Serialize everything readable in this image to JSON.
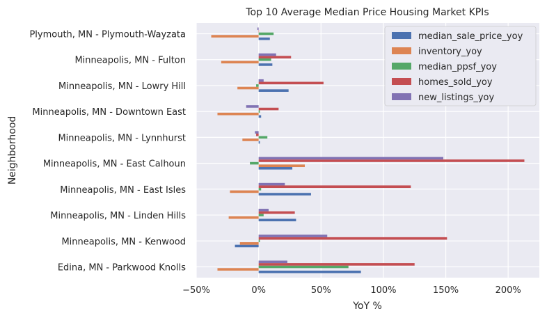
{
  "chart_data": {
    "type": "bar",
    "orientation": "horizontal",
    "title": "Top 10 Average Median Price Housing Market KPIs",
    "xlabel": "YoY %",
    "ylabel": "Neighborhood",
    "xlim": [
      -0.5,
      2.25
    ],
    "xticks": [
      -0.5,
      0,
      0.5,
      1.0,
      1.5,
      2.0
    ],
    "xtick_labels": [
      "−50%",
      "0%",
      "50%",
      "100%",
      "150%",
      "200%"
    ],
    "grid": true,
    "legend_position": "top-right",
    "categories": [
      "Edina, MN - Parkwood Knolls",
      "Minneapolis, MN - Kenwood",
      "Minneapolis, MN - Linden Hills",
      "Minneapolis, MN - East Isles",
      "Minneapolis, MN - East Calhoun",
      "Minneapolis, MN - Lynnhurst",
      "Minneapolis, MN - Downtown East",
      "Minneapolis, MN - Lowry Hill",
      "Minneapolis, MN - Fulton",
      "Plymouth, MN - Plymouth-Wayzata"
    ],
    "series": [
      {
        "name": "median_sale_price_yoy",
        "color": "#4c72b0",
        "values": [
          0.82,
          -0.19,
          0.3,
          0.42,
          0.27,
          0.01,
          0.02,
          0.24,
          0.11,
          0.09
        ]
      },
      {
        "name": "inventory_yoy",
        "color": "#dd8452",
        "values": [
          -0.33,
          -0.15,
          -0.24,
          -0.23,
          0.37,
          -0.13,
          -0.33,
          -0.17,
          -0.3,
          -0.38
        ]
      },
      {
        "name": "median_ppsf_yoy",
        "color": "#55a868",
        "values": [
          0.72,
          0.01,
          0.04,
          0.02,
          -0.07,
          0.07,
          0.01,
          -0.02,
          0.1,
          0.12
        ]
      },
      {
        "name": "homes_sold_yoy",
        "color": "#c44e52",
        "values": [
          1.25,
          1.51,
          0.29,
          1.22,
          2.13,
          -0.02,
          0.16,
          0.52,
          0.26,
          0.0
        ]
      },
      {
        "name": "new_listings_yoy",
        "color": "#8172b3",
        "values": [
          0.23,
          0.55,
          0.08,
          0.21,
          1.48,
          -0.03,
          -0.1,
          0.04,
          0.14,
          -0.01
        ]
      }
    ]
  }
}
